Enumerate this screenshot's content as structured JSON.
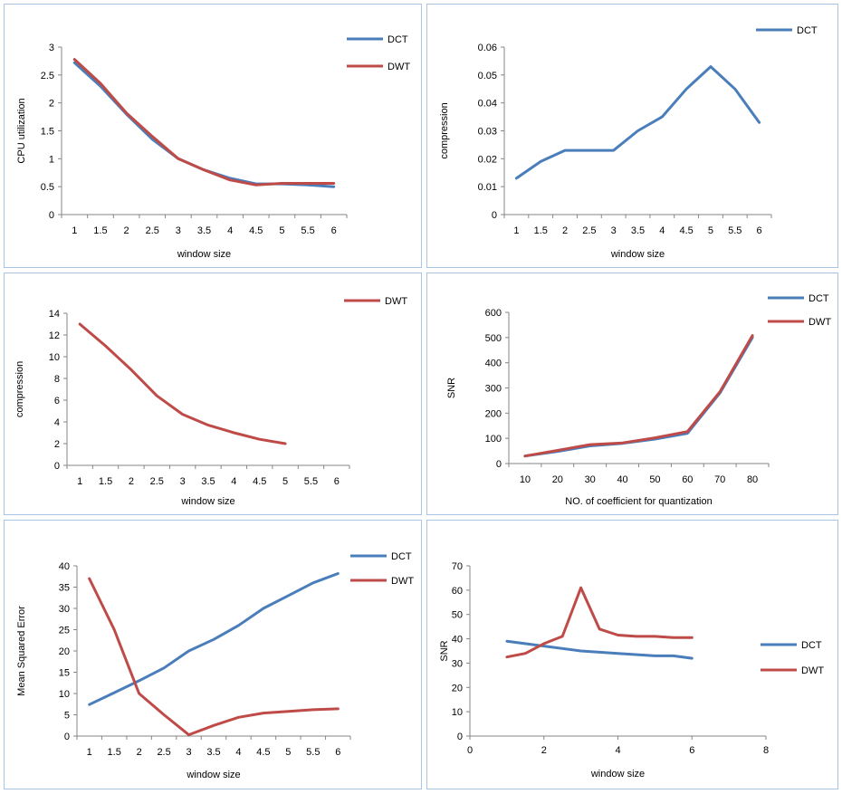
{
  "colors": {
    "DCT": "#4a7ebb",
    "DWT": "#be4b48"
  },
  "chart_data": [
    {
      "type": "line",
      "categories": [
        "1",
        "1.5",
        "2",
        "2.5",
        "3",
        "3.5",
        "4",
        "4.5",
        "5",
        "5.5",
        "6"
      ],
      "series": [
        {
          "name": "DCT",
          "values": [
            2.72,
            2.3,
            1.8,
            1.35,
            1.0,
            0.8,
            0.65,
            0.55,
            0.55,
            0.53,
            0.5
          ]
        },
        {
          "name": "DWT",
          "values": [
            2.78,
            2.35,
            1.82,
            1.4,
            1.0,
            0.8,
            0.62,
            0.53,
            0.56,
            0.56,
            0.56
          ]
        }
      ],
      "xlabel": "window size",
      "ylabel": "CPU utilization",
      "ylim": [
        0,
        3
      ],
      "yticks": [
        "0",
        "0.5",
        "1",
        "1.5",
        "2",
        "2.5",
        "3"
      ],
      "legend": "top-right"
    },
    {
      "type": "line",
      "categories": [
        "1",
        "1.5",
        "2",
        "2.5",
        "3",
        "3.5",
        "4",
        "4.5",
        "5",
        "5.5",
        "6"
      ],
      "series": [
        {
          "name": "DCT",
          "values": [
            0.013,
            0.019,
            0.023,
            0.023,
            0.023,
            0.03,
            0.035,
            0.045,
            0.053,
            0.045,
            0.033
          ]
        }
      ],
      "xlabel": "window size",
      "ylabel": "compression",
      "ylim": [
        0,
        0.06
      ],
      "yticks": [
        "0",
        "0.01",
        "0.02",
        "0.03",
        "0.04",
        "0.05",
        "0.06"
      ],
      "legend": "top-right"
    },
    {
      "type": "line",
      "categories": [
        "1",
        "1.5",
        "2",
        "2.5",
        "3",
        "3.5",
        "4",
        "4.5",
        "5",
        "5.5",
        "6"
      ],
      "series": [
        {
          "name": "DWT",
          "values": [
            13,
            11,
            8.8,
            6.4,
            4.7,
            3.7,
            3.0,
            2.4,
            2.0,
            null,
            null
          ]
        }
      ],
      "xlabel": "window size",
      "ylabel": "compression",
      "ylim": [
        0,
        14
      ],
      "yticks": [
        "0",
        "2",
        "4",
        "6",
        "8",
        "10",
        "12",
        "14"
      ],
      "legend": "top-right"
    },
    {
      "type": "line",
      "categories": [
        "10",
        "20",
        "30",
        "40",
        "50",
        "60",
        "70",
        "80"
      ],
      "series": [
        {
          "name": "DCT",
          "values": [
            30,
            48,
            70,
            80,
            97,
            120,
            280,
            500
          ]
        },
        {
          "name": "DWT",
          "values": [
            30,
            52,
            75,
            82,
            102,
            127,
            285,
            508
          ]
        }
      ],
      "xlabel": "NO. of coefficient for quantization",
      "ylabel": "SNR",
      "ylim": [
        0,
        600
      ],
      "yticks": [
        "0",
        "100",
        "200",
        "300",
        "400",
        "500",
        "600"
      ],
      "legend": "top-right"
    },
    {
      "type": "line",
      "categories": [
        "1",
        "1.5",
        "2",
        "2.5",
        "3",
        "3.5",
        "4",
        "4.5",
        "5",
        "5.5",
        "6"
      ],
      "series": [
        {
          "name": "DCT",
          "values": [
            7.4,
            10.2,
            13.0,
            16.0,
            20.0,
            22.7,
            26.0,
            30.0,
            33.0,
            36.0,
            38.2
          ]
        },
        {
          "name": "DWT",
          "values": [
            37.0,
            25.0,
            10.0,
            5.0,
            0.3,
            2.5,
            4.4,
            5.4,
            5.8,
            6.2,
            6.4
          ]
        }
      ],
      "xlabel": "window size",
      "ylabel": "Mean Squared Error",
      "ylim": [
        0,
        40
      ],
      "yticks": [
        "0",
        "5",
        "10",
        "15",
        "20",
        "25",
        "30",
        "35",
        "40"
      ],
      "legend": "top-right"
    },
    {
      "type": "scatter",
      "xlim": [
        0,
        8
      ],
      "xticks": [
        "0",
        "2",
        "4",
        "6",
        "8"
      ],
      "series": [
        {
          "name": "DCT",
          "x": [
            1,
            2,
            3,
            4,
            5,
            5.5,
            6
          ],
          "y": [
            39,
            37,
            35,
            34,
            33,
            33,
            32
          ]
        },
        {
          "name": "DWT",
          "x": [
            1,
            1.5,
            2,
            2.5,
            3,
            3.5,
            4,
            4.5,
            5,
            5.5,
            6
          ],
          "y": [
            32.5,
            34,
            38,
            41,
            61,
            44,
            41.5,
            41,
            41,
            40.5,
            40.5
          ]
        }
      ],
      "xlabel": "window size",
      "ylabel": "SNR",
      "ylim": [
        0,
        70
      ],
      "yticks": [
        "0",
        "10",
        "20",
        "30",
        "40",
        "50",
        "60",
        "70"
      ],
      "legend": "right"
    }
  ]
}
